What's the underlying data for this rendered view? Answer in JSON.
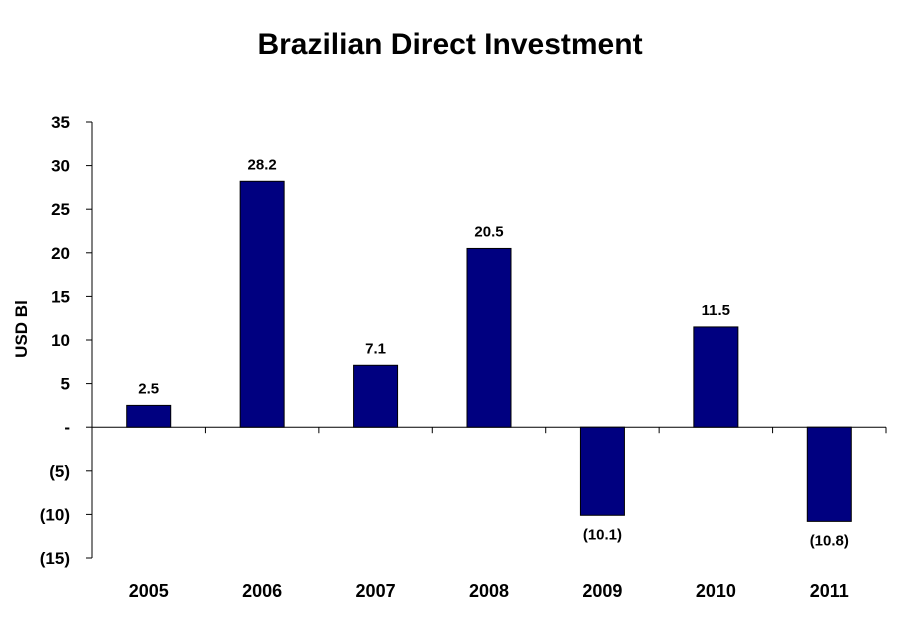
{
  "chart_data": {
    "type": "bar",
    "title": "Brazilian Direct Investment",
    "xlabel": "",
    "ylabel": "USD Bl",
    "categories": [
      "2005",
      "2006",
      "2007",
      "2008",
      "2009",
      "2010",
      "2011"
    ],
    "values": [
      2.5,
      28.2,
      7.1,
      20.5,
      -10.1,
      11.5,
      -10.8
    ],
    "data_labels": [
      "2.5",
      "28.2",
      "7.1",
      "20.5",
      "(10.1)",
      "11.5",
      "(10.8)"
    ],
    "ylim": [
      -15,
      35
    ],
    "yticks": [
      35,
      30,
      25,
      20,
      15,
      10,
      5,
      0,
      -5,
      -10,
      -15
    ],
    "ytick_labels": [
      "35",
      "30",
      "25",
      "20",
      "15",
      "10",
      "5",
      "-",
      "(5)",
      "(10)",
      "(15)"
    ],
    "bar_color": "#000080",
    "grid": false,
    "legend": "none"
  }
}
